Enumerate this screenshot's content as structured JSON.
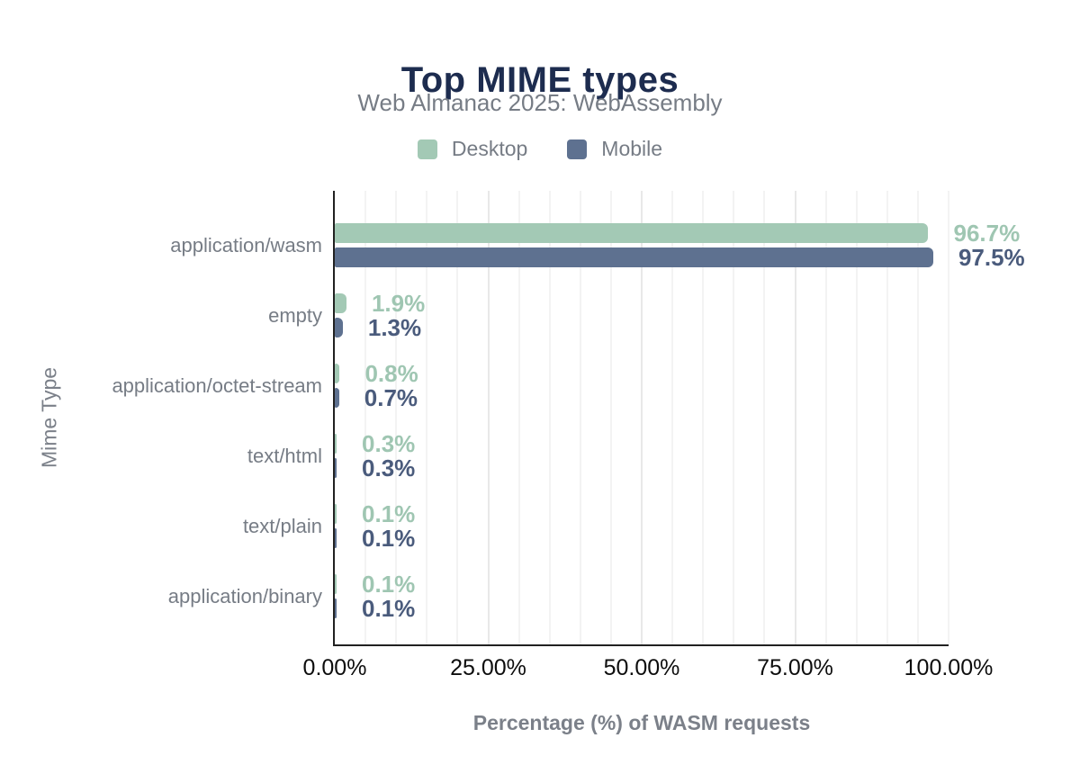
{
  "header": {
    "title": "Top MIME types",
    "subtitle": "Web Almanac 2025: WebAssembly"
  },
  "colors": {
    "title": "#1d2c4f",
    "desktop": "#a3c9b5",
    "mobile": "#5e7190",
    "desktop_label": "#9fc6b2",
    "mobile_label": "#4a5b7c",
    "muted_text": "#767c85",
    "axis_title": "#7b8089",
    "tick_text": "#0d0d0d",
    "axis_line": "#212121",
    "gridline_minor": "#f3f3f3",
    "gridline_major": "#e8e8e8"
  },
  "chart_data": {
    "type": "bar",
    "orientation": "horizontal",
    "title": "Top MIME types",
    "subtitle": "Web Almanac 2025: WebAssembly",
    "xlabel": "Percentage (%) of WASM requests",
    "ylabel": "Mime Type",
    "xlim": [
      0,
      100
    ],
    "x_tick_labels": [
      "0.00%",
      "25.00%",
      "50.00%",
      "75.00%",
      "100.00%"
    ],
    "x_tick_values": [
      0,
      25,
      50,
      75,
      100
    ],
    "grid": {
      "show": true,
      "minor_step_pct": 5,
      "major_step_pct": 25
    },
    "legend_position": "top",
    "categories": [
      "application/wasm",
      "empty",
      "application/octet-stream",
      "text/html",
      "text/plain",
      "application/binary"
    ],
    "series": [
      {
        "name": "Desktop",
        "values": [
          96.7,
          1.9,
          0.8,
          0.3,
          0.1,
          0.1
        ],
        "labels": [
          "96.7%",
          "1.9%",
          "0.8%",
          "0.3%",
          "0.1%",
          "0.1%"
        ]
      },
      {
        "name": "Mobile",
        "values": [
          97.5,
          1.3,
          0.7,
          0.3,
          0.1,
          0.1
        ],
        "labels": [
          "97.5%",
          "1.3%",
          "0.7%",
          "0.3%",
          "0.1%",
          "0.1%"
        ]
      }
    ]
  }
}
